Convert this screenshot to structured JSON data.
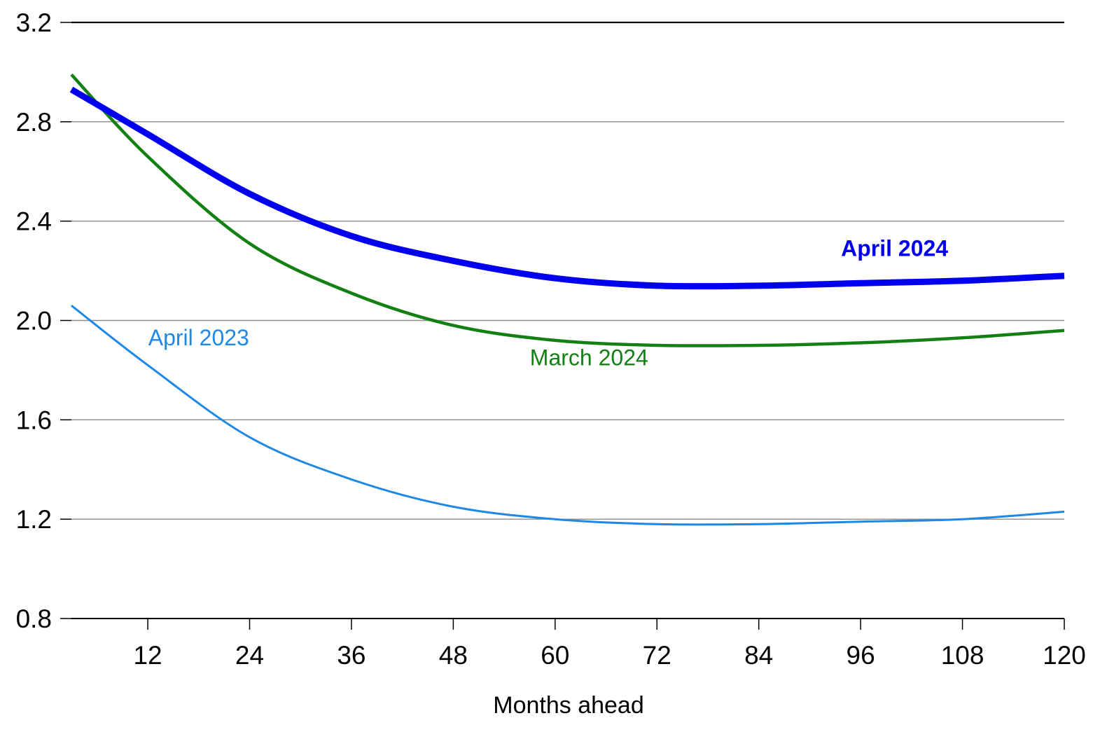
{
  "chart_data": {
    "type": "line",
    "title": "",
    "xlabel": "Months ahead",
    "ylabel": "",
    "xlim": [
      3,
      120
    ],
    "ylim": [
      0.8,
      3.2
    ],
    "xticks": [
      12,
      24,
      36,
      48,
      60,
      72,
      84,
      96,
      108,
      120
    ],
    "yticks": [
      0.8,
      1.2,
      1.6,
      2.0,
      2.4,
      2.8,
      3.2
    ],
    "ytick_labels": [
      "0.8",
      "1.2",
      "1.6",
      "2.0",
      "2.4",
      "2.8",
      "3.2"
    ],
    "xtick_labels": [
      "12",
      "24",
      "36",
      "48",
      "60",
      "72",
      "84",
      "96",
      "108",
      "120"
    ],
    "grid": "horizontal",
    "series": [
      {
        "name": "April 2024",
        "color": "#0000ee",
        "emphasis": "bold-thick",
        "x": [
          3,
          12,
          24,
          36,
          48,
          60,
          72,
          84,
          96,
          108,
          120
        ],
        "y": [
          2.93,
          2.75,
          2.51,
          2.34,
          2.24,
          2.17,
          2.14,
          2.14,
          2.15,
          2.16,
          2.18
        ]
      },
      {
        "name": "March 2024",
        "color": "#128012",
        "emphasis": "normal",
        "x": [
          3,
          12,
          24,
          36,
          48,
          60,
          72,
          84,
          96,
          108,
          120
        ],
        "y": [
          2.99,
          2.66,
          2.31,
          2.11,
          1.98,
          1.92,
          1.9,
          1.9,
          1.91,
          1.93,
          1.96
        ]
      },
      {
        "name": "April 2023",
        "color": "#1e88e5",
        "emphasis": "light",
        "x": [
          3,
          12,
          24,
          36,
          48,
          60,
          72,
          84,
          96,
          108,
          120
        ],
        "y": [
          2.06,
          1.82,
          1.53,
          1.36,
          1.25,
          1.2,
          1.18,
          1.18,
          1.19,
          1.2,
          1.23
        ]
      }
    ],
    "annotations": [
      {
        "text": "April 2024",
        "series": "April 2024",
        "x": 100,
        "y": 2.26
      },
      {
        "text": "March 2024",
        "series": "March 2024",
        "x": 64,
        "y": 1.82
      },
      {
        "text": "April 2023",
        "series": "April 2023",
        "x": 18,
        "y": 1.9
      }
    ]
  }
}
